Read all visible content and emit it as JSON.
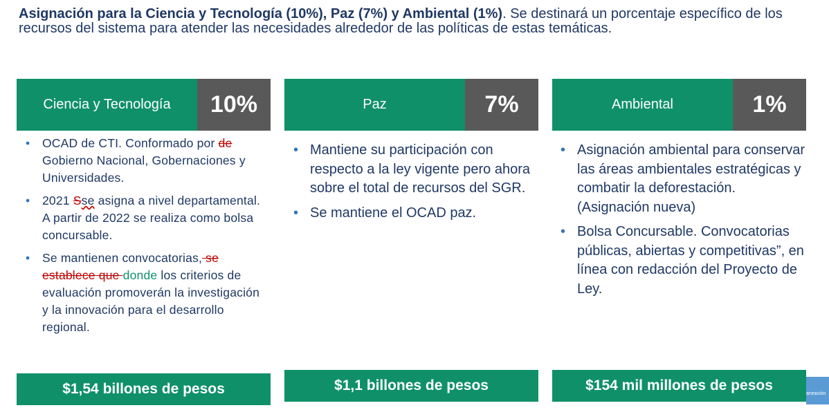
{
  "header": {
    "bold": "Asignación para la Ciencia y Tecnología (10%),  Paz (7%)  y Ambiental  (1%)",
    "rest": ".  Se destinará un porcentaje específico de los recursos del sistema para atender las necesidades alrededor de las políticas de estas temáticas."
  },
  "cards": [
    {
      "name": "Ciencia y Tecnología",
      "pct": "10%",
      "bullets": {
        "b1_a": "OCAD de CTI. Conformado por ",
        "b1_del": "de ",
        "b1_b": "Gobierno Nacional, Gobernaciones  y Universidades.",
        "b2_a": "2021 ",
        "b2_del": "S",
        "b2_wavy": "se",
        "b2_b": " asigna  a nivel departamental.  A partir de 2022 se realiza como bolsa concursable.",
        "b3_a": "Se mantienen  convocatorias,",
        "b3_del": " se establece que ",
        "b3_ins": "donde",
        "b3_b": " los criterios de evaluación promoverán  la investigación y la innovación para el desarrollo regional."
      },
      "footer": "$1,54 billones de pesos"
    },
    {
      "name": "Paz",
      "pct": "7%",
      "bullets": [
        "Mantiene su participación con respecto a la ley vigente pero ahora sobre el total de recursos del SGR.",
        "Se mantiene el OCAD paz."
      ],
      "footer": "$1,1 billones de pesos"
    },
    {
      "name": "Ambiental",
      "pct": "1%",
      "bullets": [
        "Asignación ambiental para conservar las áreas ambientales estratégicas y combatir la deforestación. (Asignación nueva)",
        "Bolsa Concursable. Convocatorias públicas, abiertas y competitivas”, en línea con redacción del Proyecto de Ley."
      ],
      "footer": "$154 mil millones de pesos"
    }
  ],
  "logo_text": "aneación",
  "colors": {
    "green": "#0f9068",
    "gray": "#595959",
    "navy": "#1f3864",
    "red": "#c00000",
    "logo_blue": "#5b9bd5"
  }
}
